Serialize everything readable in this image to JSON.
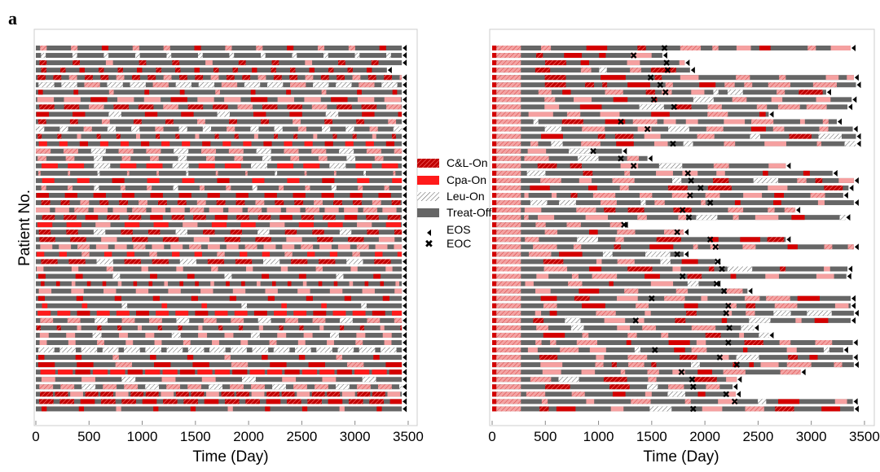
{
  "panel_label": "a",
  "legend": {
    "cl_on": "C&L-On",
    "cpa_on": "Cpa-On",
    "leu_on": "Leu-On",
    "treat_off": "Treat-Off",
    "eos": "EOS",
    "eoc": "EOC"
  },
  "colors": {
    "cl_on": "#d40000",
    "cpa_on": "#ff1a1a",
    "light": "#f5a0a0",
    "treat_off": "#666666",
    "leu_on": "#ffffff",
    "marker": "#000000"
  },
  "chart_data": [
    {
      "type": "timeline",
      "name": "left-panel",
      "xlabel": "Time (Day)",
      "ylabel": "Patient No.",
      "xlim": [
        0,
        3600
      ],
      "xticks": [
        "0",
        "500",
        "1000",
        "1500",
        "2000",
        "2500",
        "3000",
        "3500"
      ],
      "tick_values": [
        0,
        500,
        1000,
        1500,
        2000,
        2500,
        3000,
        3500
      ],
      "n_patients": 50,
      "series_end_days": [
        3440,
        3440,
        3440,
        3300,
        3440,
        3440,
        3440,
        3440,
        3440,
        3440,
        3440,
        3440,
        3440,
        3440,
        3440,
        3440,
        3440,
        3440,
        3440,
        3440,
        3440,
        3440,
        3440,
        3440,
        3440,
        3440,
        3440,
        3440,
        3440,
        3440,
        3440,
        3440,
        3440,
        3440,
        3440,
        3440,
        3440,
        3440,
        3440,
        3440,
        3440,
        3440,
        3440,
        3440,
        3440,
        3440,
        3440,
        3440,
        3440,
        3440
      ]
    },
    {
      "type": "timeline",
      "name": "right-panel",
      "xlabel": "Time (Day)",
      "ylabel": "",
      "xlim": [
        0,
        3600
      ],
      "xticks": [
        "0",
        "500",
        "1000",
        "1500",
        "2000",
        "2500",
        "3000",
        "3500"
      ],
      "tick_values": [
        0,
        500,
        1000,
        1500,
        2000,
        2500,
        3000,
        3500
      ],
      "n_patients": 50,
      "eos_days": [
        3370,
        1600,
        1810,
        1860,
        3400,
        3420,
        3140,
        3380,
        3340,
        2600,
        3240,
        3390,
        3420,
        3420,
        1220,
        1460,
        2760,
        3200,
        3400,
        3350,
        3300,
        3400,
        2850,
        3320,
        1230,
        1800,
        2760,
        3400,
        1800,
        2100,
        3340,
        3330,
        2100,
        2400,
        3370,
        3370,
        3400,
        3370,
        2460,
        2600,
        3390,
        3300,
        3390,
        3400,
        2900,
        2300,
        2260,
        2290,
        3390,
        3400
      ],
      "eoc_days": [
        1620,
        1330,
        1640,
        1650,
        1490,
        1580,
        1630,
        1520,
        1710,
        0,
        1210,
        1460,
        0,
        1700,
        950,
        1210,
        1330,
        1840,
        1870,
        1960,
        1860,
        2050,
        1790,
        1850,
        1240,
        1740,
        2050,
        2100,
        1740,
        2120,
        2160,
        1790,
        2110,
        2180,
        1500,
        2220,
        2200,
        1350,
        2230,
        0,
        2220,
        1530,
        2140,
        2300,
        1780,
        1880,
        1890,
        2200,
        2280,
        1890
      ]
    }
  ]
}
